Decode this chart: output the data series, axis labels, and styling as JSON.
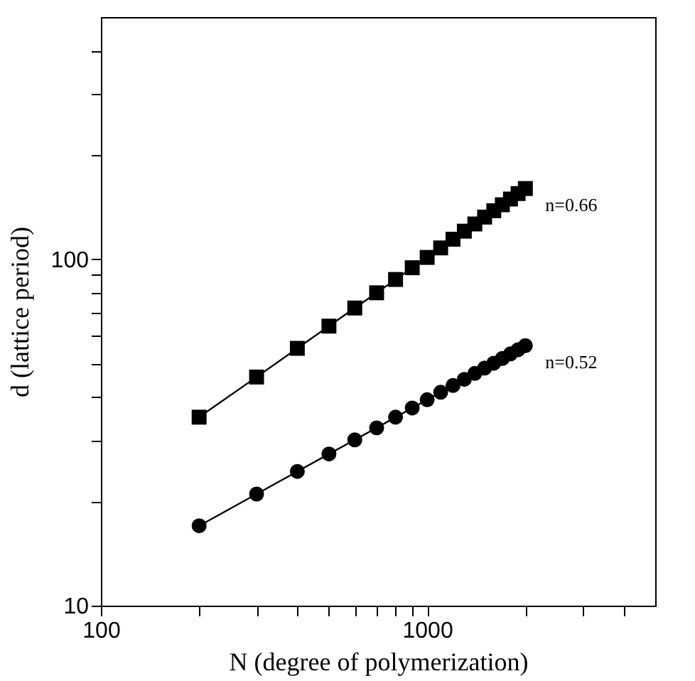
{
  "chart_data": {
    "type": "line",
    "xlabel": "N (degree of polymerization)",
    "ylabel": "d (lattice period)",
    "x": [
      200,
      300,
      400,
      500,
      600,
      700,
      800,
      900,
      1000,
      1100,
      1200,
      1300,
      1400,
      1500,
      1600,
      1700,
      1800,
      1900,
      2000
    ],
    "series": [
      {
        "color": "#000000",
        "marker": "square",
        "values": [
          35,
          45.7,
          55.3,
          64.1,
          72.3,
          80.0,
          87.4,
          94.5,
          101.2,
          107.8,
          114.2,
          120.5,
          126.4,
          132.3,
          138.0,
          143.6,
          149.2,
          154.7,
          160.0
        ]
      },
      {
        "color": "#000000",
        "marker": "circle",
        "values": [
          17,
          21.0,
          24.4,
          27.4,
          30.1,
          32.6,
          35.0,
          37.2,
          39.3,
          41.3,
          43.2,
          45.0,
          46.8,
          48.5,
          50.1,
          51.7,
          53.3,
          54.8,
          56.3
        ]
      }
    ],
    "annotations": [
      "n=0.66",
      "n=0.52"
    ],
    "log": "xy",
    "grid": false,
    "line_style": "solid",
    "xlim": [
      100,
      5000
    ],
    "xticks": [
      100,
      {
        "value": 200,
        "label": null
      },
      {
        "value": 300,
        "label": null
      },
      {
        "value": 400,
        "label": null
      },
      {
        "value": 500,
        "label": null
      },
      {
        "value": 600,
        "label": null
      },
      {
        "value": 700,
        "label": null
      },
      {
        "value": 800,
        "label": null
      },
      {
        "value": 900,
        "label": null
      },
      1000,
      {
        "value": 2000,
        "label": null
      },
      {
        "value": 3000,
        "label": null
      },
      {
        "value": 4000,
        "label": null
      }
    ],
    "ylim": [
      10,
      500
    ],
    "yticks": [
      10,
      {
        "value": 20,
        "label": null
      },
      {
        "value": 30,
        "label": null
      },
      {
        "value": 40,
        "label": null
      },
      {
        "value": 50,
        "label": null
      },
      {
        "value": 60,
        "label": null
      },
      {
        "value": 70,
        "label": null
      },
      {
        "value": 80,
        "label": null
      },
      {
        "value": 90,
        "label": null
      },
      100,
      {
        "value": 200,
        "label": null
      },
      {
        "value": 300,
        "label": null
      },
      {
        "value": 400,
        "label": null
      }
    ]
  }
}
